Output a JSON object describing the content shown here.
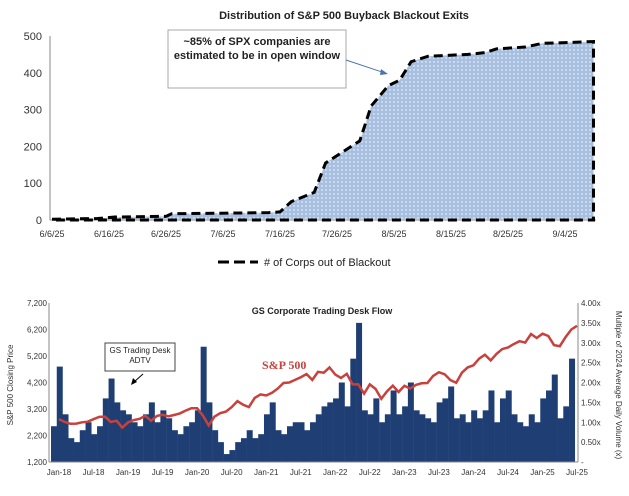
{
  "chart_data": [
    {
      "type": "area",
      "title": "Distribution of S&P 500 Buyback Blackout Exits",
      "x": [
        "6/6/25",
        "6/14/25",
        "6/17/25",
        "6/26/25",
        "6/27/25",
        "7/14/25",
        "7/16/25",
        "7/18/25",
        "7/22/25",
        "7/24/25",
        "7/28/25",
        "7/30/25",
        "8/1/25",
        "8/4/25",
        "8/6/25",
        "8/8/25",
        "8/11/25",
        "8/18/25",
        "8/21/25",
        "8/23/25",
        "8/28/25",
        "8/31/25",
        "9/4/25",
        "9/9/25"
      ],
      "series": [
        {
          "name": "# of Corps out of Blackout",
          "values": [
            2,
            4,
            8,
            10,
            17,
            20,
            22,
            50,
            75,
            155,
            195,
            215,
            310,
            365,
            380,
            430,
            445,
            450,
            455,
            465,
            470,
            480,
            482,
            485
          ]
        }
      ],
      "xticks": [
        "6/6/25",
        "6/16/25",
        "6/26/25",
        "7/6/25",
        "7/16/25",
        "7/26/25",
        "8/5/25",
        "8/15/25",
        "8/25/25",
        "9/4/25"
      ],
      "yticks": [
        "0",
        "100",
        "200",
        "300",
        "400",
        "500"
      ],
      "ylim": [
        0,
        500
      ],
      "annotation": "~85% of SPX companies are estimated to be in open window",
      "legend_position": "bottom",
      "colors": {
        "fill": "#a7c0e0",
        "line": "#000000"
      }
    },
    {
      "type": "bar+line",
      "title": "GS Corporate Trading Desk Flow",
      "ylabel": "S&P 500 Closing Price",
      "y2label": "Multiple of 2024 Average Daily Volume (x)",
      "ylim": [
        1200,
        7200
      ],
      "y2lim": [
        0,
        4
      ],
      "yticks": [
        "1,200",
        "2,200",
        "3,200",
        "4,200",
        "5,200",
        "6,200",
        "7,200"
      ],
      "y2ticks": [
        "-",
        "0.50x",
        "1.00x",
        "1.50x",
        "2.00x",
        "2.50x",
        "3.00x",
        "3.50x",
        "4.00x"
      ],
      "xticks": [
        "Jan-18",
        "Jul-18",
        "Jan-19",
        "Jul-19",
        "Jan-20",
        "Jul-20",
        "Jan-21",
        "Jul-21",
        "Jan-22",
        "Jul-22",
        "Jan-23",
        "Jul-23",
        "Jan-24",
        "Jul-24",
        "Jan-25",
        "Jul-25"
      ],
      "x_start": "Jan-18",
      "x_step": "month",
      "series": [
        {
          "name": "S&P 500",
          "axis": "left",
          "values": [
            2820,
            2710,
            2640,
            2650,
            2700,
            2720,
            2815,
            2900,
            2910,
            2710,
            2760,
            2500,
            2700,
            2780,
            2830,
            2945,
            2750,
            2940,
            2980,
            2925,
            2975,
            3035,
            3140,
            3230,
            3225,
            2950,
            2580,
            2910,
            3040,
            3100,
            3270,
            3500,
            3360,
            3270,
            3620,
            3750,
            3710,
            3810,
            3970,
            4180,
            4200,
            4300,
            4400,
            4520,
            4300,
            4600,
            4570,
            4770,
            4500,
            4370,
            4530,
            4130,
            4130,
            3780,
            4130,
            3955,
            3585,
            3870,
            4080,
            3840,
            4075,
            3970,
            4110,
            4170,
            4180,
            4450,
            4590,
            4510,
            4290,
            4190,
            4570,
            4770,
            4850,
            5100,
            5250,
            5035,
            5280,
            5460,
            5520,
            5650,
            5760,
            5705,
            6030,
            5880,
            6040,
            5955,
            5610,
            5570,
            5910,
            6200,
            6340
          ]
        },
        {
          "name": "GS Trading Desk ADTV",
          "axis": "right",
          "values": [
            0.9,
            2.4,
            1.2,
            0.6,
            0.5,
            0.8,
            1.0,
            0.7,
            0.9,
            1.6,
            2.1,
            1.5,
            1.3,
            1.2,
            1.0,
            0.9,
            1.2,
            1.5,
            1.0,
            1.3,
            1.1,
            0.8,
            0.7,
            0.9,
            1.0,
            1.3,
            2.9,
            1.5,
            0.8,
            0.5,
            0.2,
            0.3,
            0.5,
            0.6,
            0.8,
            0.6,
            0.7,
            1.2,
            1.5,
            0.8,
            0.7,
            0.9,
            1.0,
            1.0,
            0.8,
            1.0,
            1.2,
            1.4,
            1.5,
            1.6,
            2.0,
            1.4,
            2.6,
            3.5,
            1.3,
            1.2,
            1.6,
            1.0,
            1.2,
            1.8,
            1.2,
            1.4,
            2.0,
            1.3,
            1.2,
            1.1,
            1.0,
            1.5,
            1.6,
            1.9,
            1.1,
            1.2,
            1.0,
            1.3,
            1.1,
            1.3,
            1.8,
            1.0,
            1.6,
            1.8,
            1.2,
            1.0,
            0.9,
            1.2,
            1.0,
            1.6,
            1.8,
            2.2,
            1.1,
            1.4,
            2.6
          ]
        }
      ],
      "colors": {
        "bars": "#1f3f74",
        "line": "#c0504d"
      }
    }
  ]
}
